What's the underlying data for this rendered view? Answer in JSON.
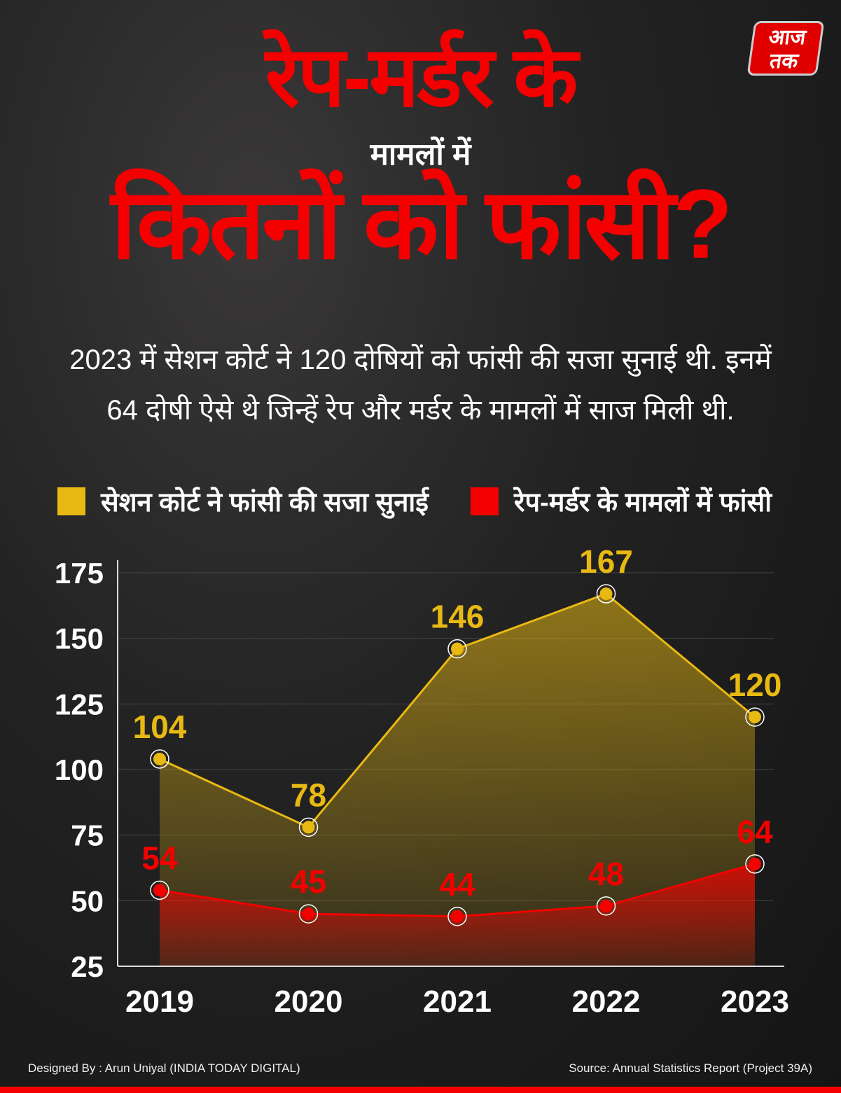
{
  "title": {
    "line1": "रेप-मर्डर के",
    "line2": "मामलों में",
    "line3": "कितनों को फांसी?"
  },
  "logo": {
    "text_top": "आज",
    "text_bottom": "तक"
  },
  "subtitle": {
    "line1": "2023 में सेशन कोर्ट ने 120 दोषियों को फांसी की सजा सुनाई थी. इनमें",
    "line2": "64 दोषी ऐसे थे जिन्हें रेप और मर्डर के मामलों में साज मिली थी."
  },
  "colors": {
    "yellow": "#e8b913",
    "red": "#f40000"
  },
  "chart_data": {
    "type": "area",
    "title": "",
    "xlabel": "",
    "ylabel": "",
    "categories": [
      "2019",
      "2020",
      "2021",
      "2022",
      "2023"
    ],
    "yticks": [
      25,
      50,
      75,
      100,
      125,
      150,
      175
    ],
    "ylim": [
      25,
      175
    ],
    "grid": true,
    "legend_position": "top",
    "series": [
      {
        "name": "सेशन कोर्ट ने फांसी की सजा सुनाई",
        "color": "#e8b913",
        "values": [
          104,
          78,
          146,
          167,
          120
        ]
      },
      {
        "name": "रेप-मर्डर के मामलों में फांसी",
        "color": "#f40000",
        "values": [
          54,
          45,
          44,
          48,
          64
        ]
      }
    ]
  },
  "footer": {
    "designed_by": "Designed By : Arun Uniyal (INDIA TODAY DIGITAL)",
    "source": "Source:  Annual Statistics Report (Project 39A)"
  }
}
